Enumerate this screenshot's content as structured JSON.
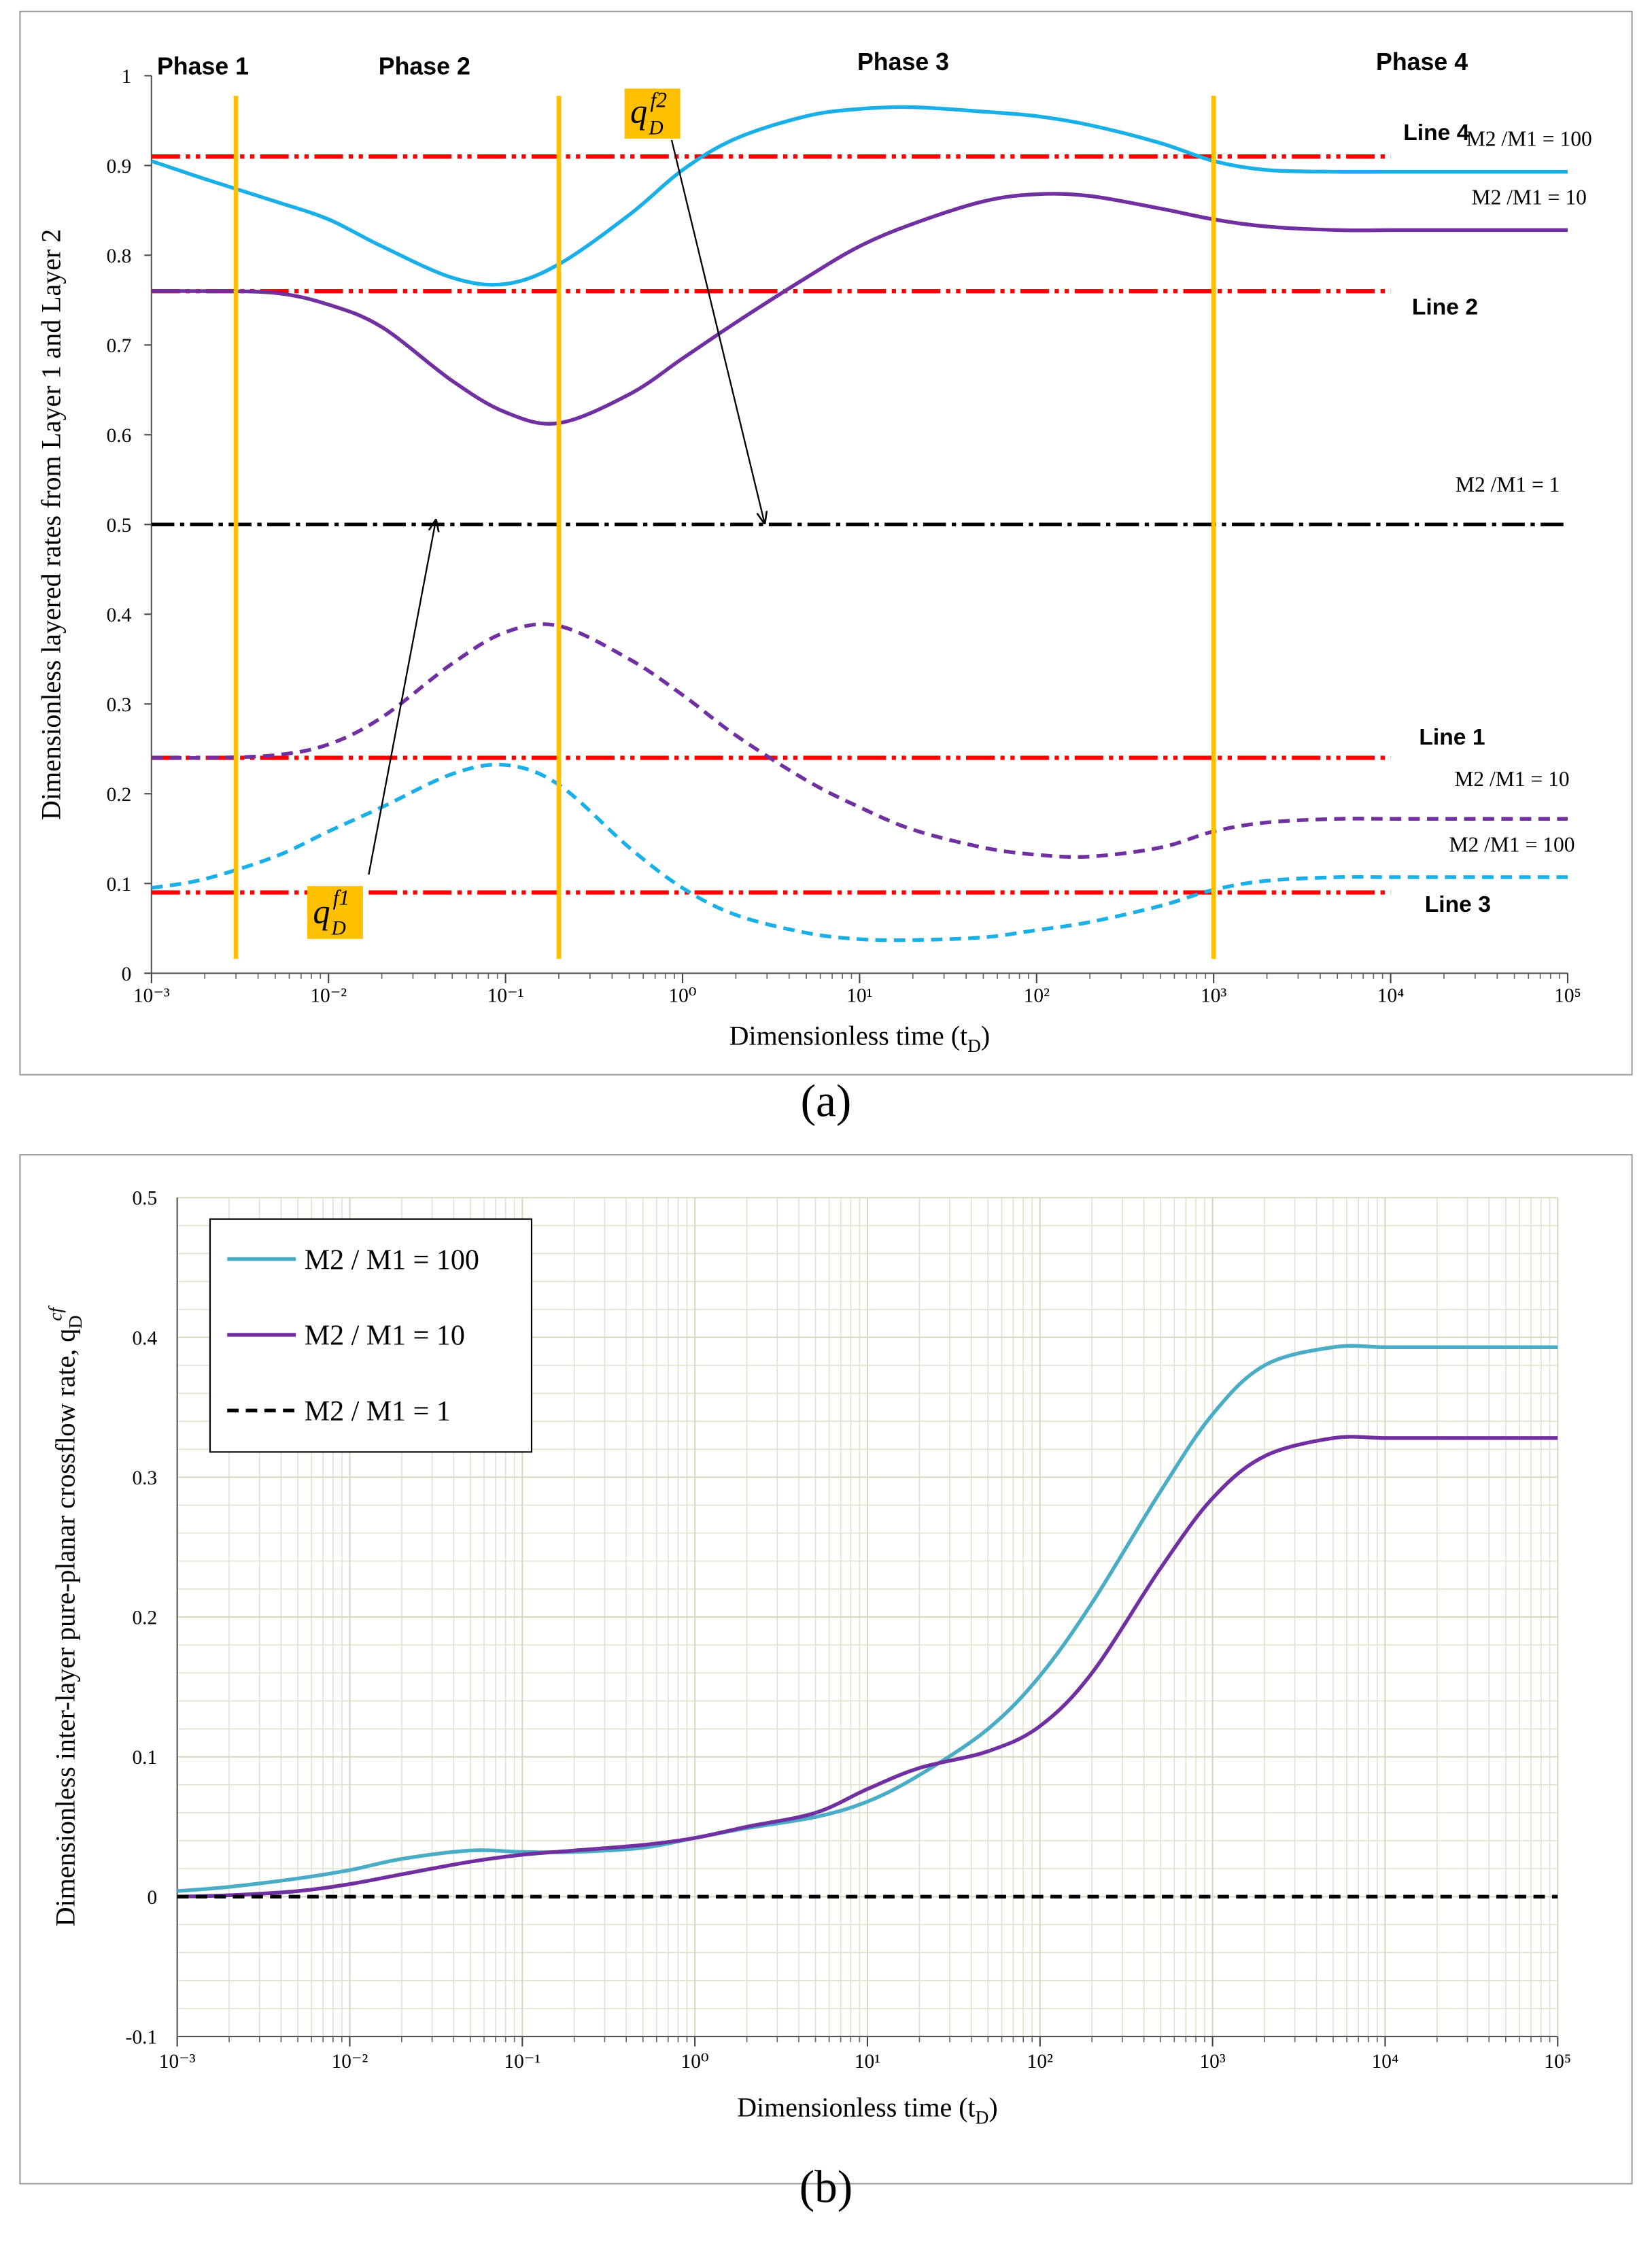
{
  "chart_data": [
    {
      "type": "line",
      "caption": "(a)",
      "xlabel": [
        "Dimensionless time (t",
        "D",
        ")"
      ],
      "ylabel": [
        "Dimensionless layered rates  from Layer 1 and Layer 2"
      ],
      "xscale": "log",
      "xlim": [
        0.001,
        100000
      ],
      "xticks": [
        {
          "value": 0.001,
          "label": "10⁻³"
        },
        {
          "value": 0.01,
          "label": "10⁻²"
        },
        {
          "value": 0.1,
          "label": "10⁻¹"
        },
        {
          "value": 1,
          "label": "10⁰"
        },
        {
          "value": 10,
          "label": "10¹"
        },
        {
          "value": 100,
          "label": "10²"
        },
        {
          "value": 1000,
          "label": "10³"
        },
        {
          "value": 10000,
          "label": "10⁴"
        },
        {
          "value": 100000,
          "label": "10⁵"
        }
      ],
      "ylim": [
        0,
        1
      ],
      "yticks": [
        0,
        0.1,
        0.2,
        0.3,
        0.4,
        0.5,
        0.6,
        0.7,
        0.8,
        0.9,
        1
      ],
      "grid": false,
      "series_labels": "inline",
      "x": [
        0.001,
        0.002,
        0.005,
        0.01,
        0.02,
        0.05,
        0.1,
        0.2,
        0.5,
        1,
        2,
        5,
        10,
        20,
        50,
        100,
        200,
        500,
        1000,
        2000,
        5000,
        10000,
        20000,
        50000,
        100000
      ],
      "series": [
        {
          "name": "Line 4",
          "color": "#ff0000",
          "dash": "dashdotdot",
          "values": [
            0.91,
            0.91,
            0.91,
            0.91,
            0.91,
            0.91,
            0.91,
            0.91,
            0.91,
            0.91,
            0.91,
            0.91,
            0.91,
            0.91,
            0.91,
            0.91,
            0.91,
            0.91,
            0.91,
            0.91,
            0.91,
            0.91,
            null,
            null,
            null
          ]
        },
        {
          "name": "Line 2",
          "color": "#ff0000",
          "dash": "dashdotdot",
          "values": [
            0.76,
            0.76,
            0.76,
            0.76,
            0.76,
            0.76,
            0.76,
            0.76,
            0.76,
            0.76,
            0.76,
            0.76,
            0.76,
            0.76,
            0.76,
            0.76,
            0.76,
            0.76,
            0.76,
            0.76,
            0.76,
            0.76,
            null,
            null,
            null
          ]
        },
        {
          "name": "Line 1",
          "color": "#ff0000",
          "dash": "dashdotdot",
          "values": [
            0.24,
            0.24,
            0.24,
            0.24,
            0.24,
            0.24,
            0.24,
            0.24,
            0.24,
            0.24,
            0.24,
            0.24,
            0.24,
            0.24,
            0.24,
            0.24,
            0.24,
            0.24,
            0.24,
            0.24,
            0.24,
            0.24,
            null,
            null,
            null
          ]
        },
        {
          "name": "Line 3",
          "color": "#ff0000",
          "dash": "dashdotdot",
          "values": [
            0.09,
            0.09,
            0.09,
            0.09,
            0.09,
            0.09,
            0.09,
            0.09,
            0.09,
            0.09,
            0.09,
            0.09,
            0.09,
            0.09,
            0.09,
            0.09,
            0.09,
            0.09,
            0.09,
            0.09,
            0.09,
            0.09,
            null,
            null,
            null
          ]
        },
        {
          "name": "M2 /M1 = 100",
          "color": "#1aafe6",
          "dash": "solid",
          "values": [
            0.905,
            0.885,
            0.86,
            0.84,
            0.81,
            0.775,
            0.768,
            0.79,
            0.845,
            0.895,
            0.93,
            0.955,
            0.963,
            0.965,
            0.96,
            0.955,
            0.945,
            0.925,
            0.905,
            0.895,
            0.893,
            0.893,
            0.893,
            0.893,
            0.893
          ]
        },
        {
          "name": "M2 /M1 = 10",
          "color": "#7030a0",
          "dash": "solid",
          "values": [
            0.76,
            0.76,
            0.758,
            0.745,
            0.72,
            0.66,
            0.625,
            0.613,
            0.645,
            0.685,
            0.725,
            0.775,
            0.81,
            0.835,
            0.86,
            0.868,
            0.866,
            0.852,
            0.84,
            0.832,
            0.828,
            0.828,
            0.828,
            0.828,
            0.828
          ]
        },
        {
          "name": "M2 /M1 = 1",
          "color": "#000000",
          "dash": "dashdot",
          "values": [
            0.5,
            0.5,
            0.5,
            0.5,
            0.5,
            0.5,
            0.5,
            0.5,
            0.5,
            0.5,
            0.5,
            0.5,
            0.5,
            0.5,
            0.5,
            0.5,
            0.5,
            0.5,
            0.5,
            0.5,
            0.5,
            0.5,
            0.5,
            0.5,
            0.5
          ]
        },
        {
          "name": "M2 /M1 = 10",
          "color": "#7030a0",
          "dash": "dashed",
          "values": [
            0.24,
            0.24,
            0.243,
            0.255,
            0.285,
            0.345,
            0.38,
            0.387,
            0.35,
            0.31,
            0.265,
            0.215,
            0.185,
            0.16,
            0.14,
            0.132,
            0.13,
            0.14,
            0.158,
            0.168,
            0.172,
            0.172,
            0.172,
            0.172,
            0.172
          ]
        },
        {
          "name": "M2 /M1 = 100",
          "color": "#1aafe6",
          "dash": "dashed",
          "values": [
            0.095,
            0.105,
            0.13,
            0.158,
            0.185,
            0.222,
            0.232,
            0.21,
            0.14,
            0.095,
            0.065,
            0.045,
            0.038,
            0.037,
            0.04,
            0.048,
            0.057,
            0.075,
            0.093,
            0.103,
            0.107,
            0.107,
            0.107,
            0.107,
            0.107
          ]
        }
      ],
      "vlines": [
        0.003,
        0.2,
        1000
      ],
      "vline_color": "#ffc000",
      "phase_labels": [
        "Phase 1",
        "Phase 2",
        "Phase 3",
        "Phase 4"
      ],
      "q_labels": [
        {
          "text": "q",
          "sub": "D",
          "sup": "f2"
        },
        {
          "text": "q",
          "sub": "D",
          "sup": "f1"
        }
      ]
    },
    {
      "type": "line",
      "caption": "(b)",
      "xlabel": [
        "Dimensionless time (t",
        "D",
        ")"
      ],
      "ylabel": [
        "Dimensionless inter-layer pure-planar crossflow rate, q",
        "D",
        "cf"
      ],
      "xscale": "log",
      "xlim": [
        0.001,
        100000
      ],
      "xticks": [
        {
          "value": 0.001,
          "label": "10⁻³"
        },
        {
          "value": 0.01,
          "label": "10⁻²"
        },
        {
          "value": 0.1,
          "label": "10⁻¹"
        },
        {
          "value": 1,
          "label": "10⁰"
        },
        {
          "value": 10,
          "label": "10¹"
        },
        {
          "value": 100,
          "label": "10²"
        },
        {
          "value": 1000,
          "label": "10³"
        },
        {
          "value": 10000,
          "label": "10⁴"
        },
        {
          "value": 100000,
          "label": "10⁵"
        }
      ],
      "ylim": [
        -0.1,
        0.5
      ],
      "yticks": [
        -0.1,
        0,
        0.1,
        0.2,
        0.3,
        0.4,
        0.5
      ],
      "grid": true,
      "minor_grid": true,
      "series_labels": "legend",
      "legend": "upper left",
      "x": [
        0.001,
        0.002,
        0.005,
        0.01,
        0.02,
        0.05,
        0.1,
        0.2,
        0.5,
        1,
        2,
        5,
        10,
        20,
        50,
        100,
        200,
        500,
        1000,
        2000,
        5000,
        10000,
        20000,
        50000,
        100000
      ],
      "series": [
        {
          "name": "M2 / M1 = 100",
          "color": "#4bacc6",
          "dash": "solid",
          "values": [
            0.004,
            0.007,
            0.013,
            0.019,
            0.027,
            0.033,
            0.032,
            0.032,
            0.035,
            0.042,
            0.049,
            0.057,
            0.068,
            0.087,
            0.12,
            0.158,
            0.21,
            0.29,
            0.345,
            0.38,
            0.393,
            0.393,
            0.393,
            0.393,
            0.393
          ]
        },
        {
          "name": "M2 / M1 = 10",
          "color": "#7030a0",
          "dash": "solid",
          "values": [
            0,
            0.001,
            0.004,
            0.009,
            0.016,
            0.025,
            0.03,
            0.033,
            0.037,
            0.042,
            0.05,
            0.06,
            0.077,
            0.092,
            0.104,
            0.122,
            0.16,
            0.235,
            0.285,
            0.315,
            0.328,
            0.328,
            0.328,
            0.328,
            0.328
          ]
        },
        {
          "name": "M2 / M1 = 1",
          "color": "#000000",
          "dash": "dashed",
          "values": [
            0,
            0,
            0,
            0,
            0,
            0,
            0,
            0,
            0,
            0,
            0,
            0,
            0,
            0,
            0,
            0,
            0,
            0,
            0,
            0,
            0,
            0,
            0,
            0,
            0
          ]
        }
      ]
    }
  ]
}
